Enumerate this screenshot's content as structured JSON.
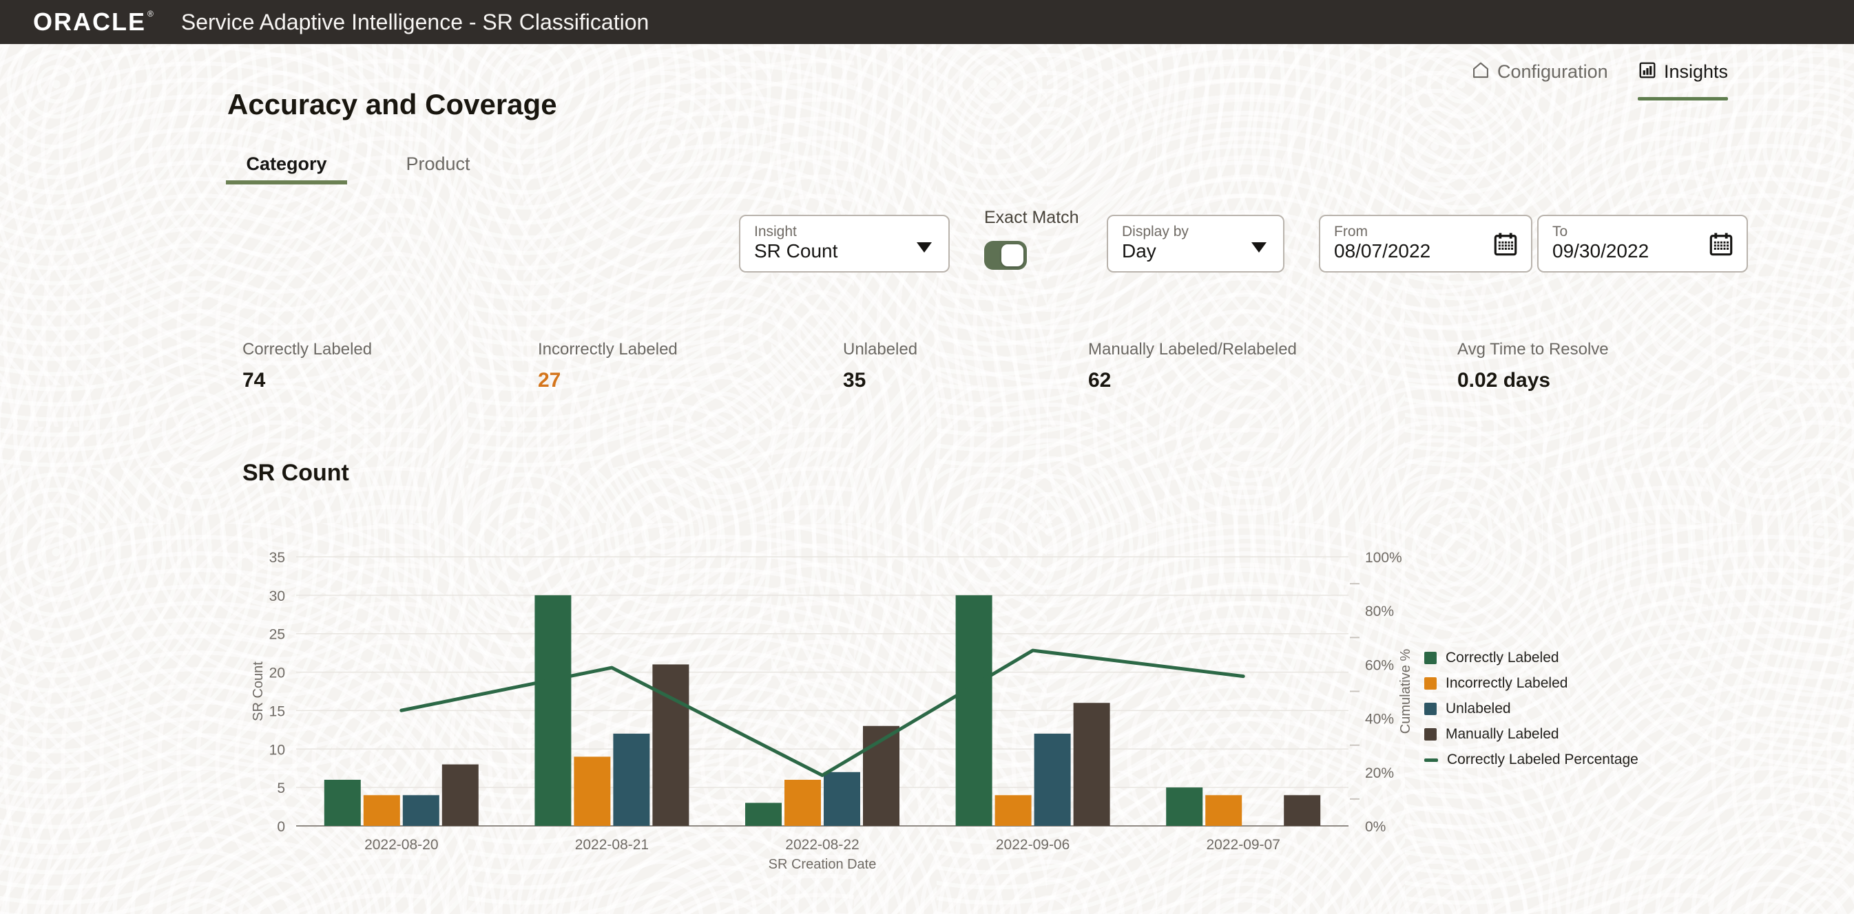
{
  "header": {
    "brand": "ORACLE",
    "registered_mark": "®",
    "title": "Service Adaptive Intelligence - SR Classification"
  },
  "nav": {
    "configuration": {
      "label": "Configuration",
      "icon": "home-icon",
      "active": false
    },
    "insights": {
      "label": "Insights",
      "icon": "bar-chart-icon",
      "active": true
    }
  },
  "page": {
    "title": "Accuracy and Coverage"
  },
  "tabs": {
    "category": {
      "label": "Category",
      "active": true
    },
    "product": {
      "label": "Product",
      "active": false
    }
  },
  "filters": {
    "insight": {
      "label": "Insight",
      "value": "SR Count",
      "icon": "caret-down-icon"
    },
    "exact_match": {
      "label": "Exact Match",
      "on": true
    },
    "display_by": {
      "label": "Display by",
      "value": "Day",
      "icon": "caret-down-icon"
    },
    "from": {
      "label": "From",
      "value": "08/07/2022",
      "icon": "calendar-icon"
    },
    "to": {
      "label": "To",
      "value": "09/30/2022",
      "icon": "calendar-icon"
    }
  },
  "kpis": [
    {
      "label": "Correctly Labeled",
      "value": "74"
    },
    {
      "label": "Incorrectly Labeled",
      "value": "27",
      "highlight": "#d4751c"
    },
    {
      "label": "Unlabeled",
      "value": "35"
    },
    {
      "label": "Manually Labeled/Relabeled",
      "value": "62"
    },
    {
      "label": "Avg Time to Resolve",
      "value": "0.02 days"
    }
  ],
  "section": {
    "title": "SR Count"
  },
  "chart_data": {
    "type": "bar+line",
    "title": "SR Count",
    "categories": [
      "2022-08-20",
      "2022-08-21",
      "2022-08-22",
      "2022-09-06",
      "2022-09-07"
    ],
    "series": [
      {
        "name": "Correctly Labeled",
        "color": "#2c6846",
        "values": [
          6,
          30,
          3,
          30,
          5
        ]
      },
      {
        "name": "Incorrectly Labeled",
        "color": "#dd8314",
        "values": [
          4,
          9,
          6,
          4,
          4
        ]
      },
      {
        "name": "Unlabeled",
        "color": "#2e5765",
        "values": [
          4,
          12,
          7,
          12,
          0
        ]
      },
      {
        "name": "Manually Labeled",
        "color": "#4c4037",
        "values": [
          8,
          21,
          13,
          16,
          4
        ]
      }
    ],
    "line_series": {
      "name": "Correctly Labeled Percentage",
      "color": "#2c6846",
      "axis": "right",
      "values": [
        42.9,
        58.8,
        18.8,
        65.2,
        55.6
      ]
    },
    "left_axis": {
      "title": "SR Count",
      "min": 0,
      "max": 35,
      "step": 5
    },
    "right_axis": {
      "title": "Cumulative %",
      "min": 0,
      "max": 100,
      "step": 20,
      "suffix": "%"
    },
    "xlabel": "SR Creation Date",
    "legend_position": "right",
    "grid": "horizontal"
  },
  "colors": {
    "header_bg": "#312d2a",
    "accent_green": "#5f7d4e",
    "toggle_green": "#5e7153",
    "kpi_highlight_orange": "#d4751c",
    "grid_line": "#e8e5e0",
    "axis_base_line": "#8f8983"
  }
}
